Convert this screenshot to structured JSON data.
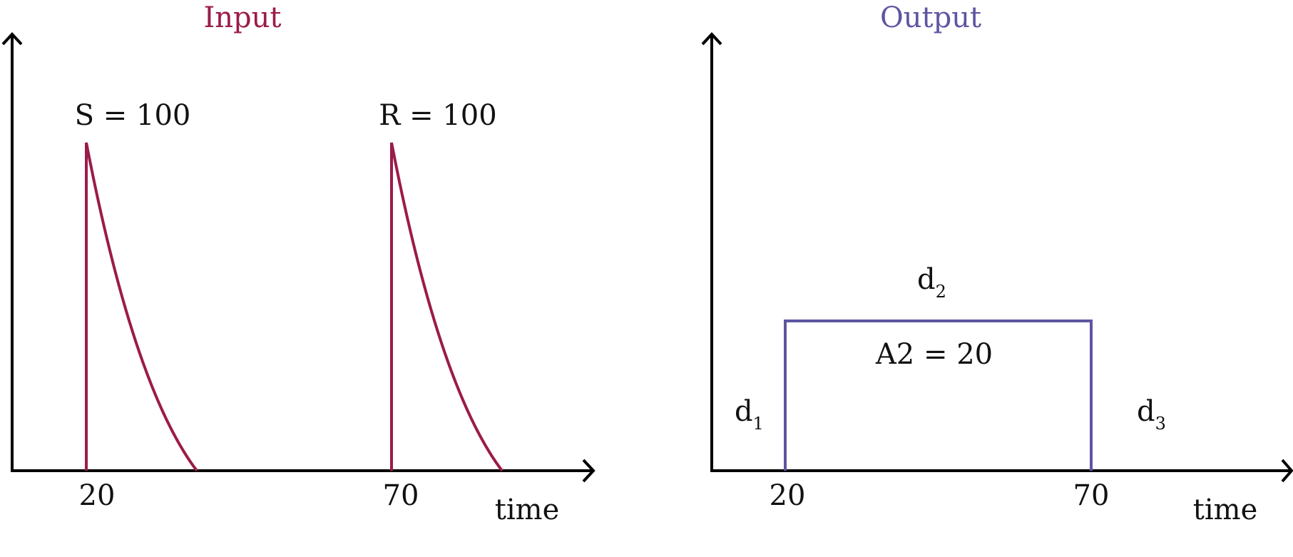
{
  "colors": {
    "input": "#9b1b4a",
    "output": "#5e55a2",
    "axis": "#000000"
  },
  "input_panel": {
    "title": "Input",
    "pulse1_label": "S = 100",
    "pulse2_label": "R = 100",
    "tick1": "20",
    "tick2": "70",
    "xlabel": "time"
  },
  "output_panel": {
    "title": "Output",
    "area_label": "A2 = 20",
    "d1_base": "d",
    "d1_sub": "1",
    "d2_base": "d",
    "d2_sub": "2",
    "d3_base": "d",
    "d3_sub": "3",
    "tick1": "20",
    "tick2": "70",
    "xlabel": "time"
  }
}
